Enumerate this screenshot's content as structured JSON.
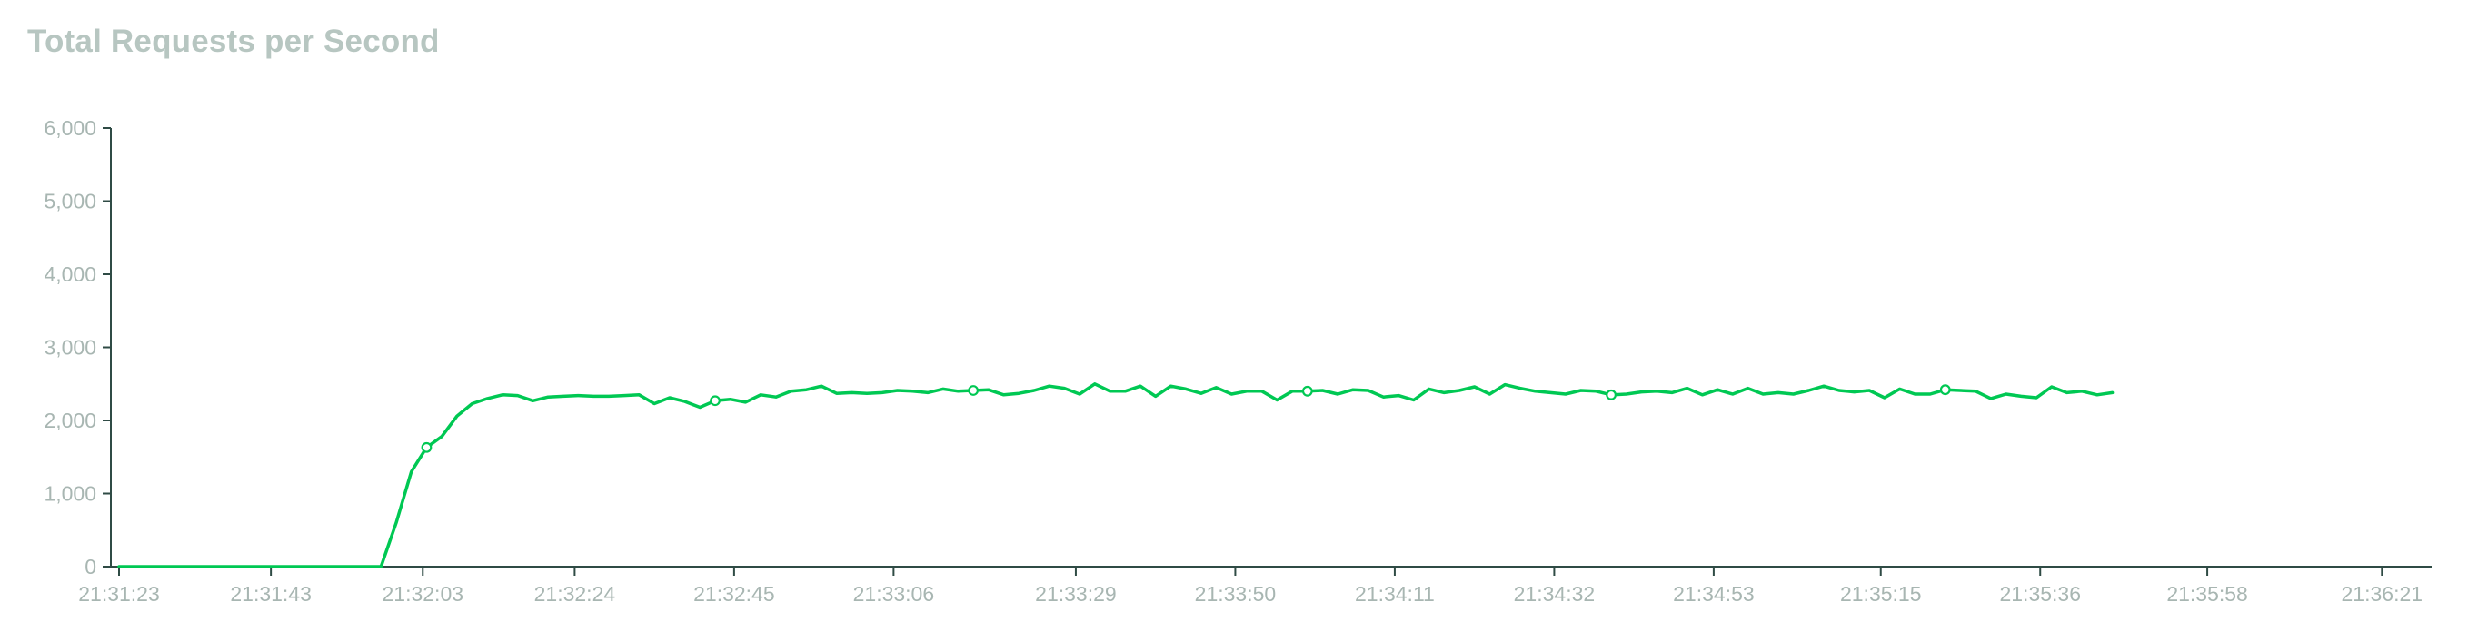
{
  "chart_data": {
    "type": "line",
    "title": "Total Requests per Second",
    "xlabel": "",
    "ylabel": "",
    "ylim": [
      0,
      6000
    ],
    "yticks": [
      0,
      1000,
      2000,
      3000,
      4000,
      5000,
      6000
    ],
    "ytick_labels": [
      "0",
      "1,000",
      "2,000",
      "3,000",
      "4,000",
      "5,000",
      "6,000"
    ],
    "x_range_seconds": [
      0,
      300
    ],
    "xtick_seconds": [
      0,
      20,
      40,
      60,
      81,
      102,
      126,
      147,
      168,
      189,
      210,
      232,
      253,
      275,
      298
    ],
    "xtick_labels": [
      "21:31:23",
      "21:31:43",
      "21:32:03",
      "21:32:24",
      "21:32:45",
      "21:33:06",
      "21:33:29",
      "21:33:50",
      "21:34:11",
      "21:34:32",
      "21:34:53",
      "21:35:15",
      "21:35:36",
      "21:35:58",
      "21:36:21"
    ],
    "grid": false,
    "series": [
      {
        "name": "Total Requests per Second",
        "color": "#00c853",
        "points": [
          [
            0,
            0
          ],
          [
            34.5,
            0
          ],
          [
            36.5,
            600
          ],
          [
            38.5,
            1300
          ],
          [
            40.5,
            1630
          ],
          [
            42.5,
            1780
          ],
          [
            44.5,
            2060
          ],
          [
            46.5,
            2230
          ],
          [
            48.5,
            2300
          ],
          [
            50.5,
            2350
          ],
          [
            52.5,
            2340
          ],
          [
            54.5,
            2270
          ],
          [
            56.5,
            2320
          ],
          [
            58.5,
            2330
          ],
          [
            60.5,
            2340
          ],
          [
            62.5,
            2330
          ],
          [
            64.5,
            2330
          ],
          [
            66.5,
            2340
          ],
          [
            68.5,
            2350
          ],
          [
            70.5,
            2230
          ],
          [
            72.5,
            2310
          ],
          [
            74.5,
            2260
          ],
          [
            76.5,
            2180
          ],
          [
            78.5,
            2270
          ],
          [
            80.5,
            2290
          ],
          [
            82.5,
            2250
          ],
          [
            84.5,
            2350
          ],
          [
            86.5,
            2320
          ],
          [
            88.5,
            2400
          ],
          [
            90.5,
            2420
          ],
          [
            92.5,
            2470
          ],
          [
            94.5,
            2370
          ],
          [
            96.5,
            2380
          ],
          [
            98.5,
            2370
          ],
          [
            100.5,
            2380
          ],
          [
            102.5,
            2410
          ],
          [
            104.5,
            2400
          ],
          [
            106.5,
            2380
          ],
          [
            108.5,
            2430
          ],
          [
            110.5,
            2400
          ],
          [
            112.5,
            2410
          ],
          [
            114.5,
            2420
          ],
          [
            116.5,
            2350
          ],
          [
            118.5,
            2370
          ],
          [
            120.5,
            2410
          ],
          [
            122.5,
            2470
          ],
          [
            124.5,
            2440
          ],
          [
            126.5,
            2360
          ],
          [
            128.5,
            2500
          ],
          [
            130.5,
            2400
          ],
          [
            132.5,
            2400
          ],
          [
            134.5,
            2470
          ],
          [
            136.5,
            2330
          ],
          [
            138.5,
            2470
          ],
          [
            140.5,
            2430
          ],
          [
            142.5,
            2370
          ],
          [
            144.5,
            2450
          ],
          [
            146.5,
            2360
          ],
          [
            148.5,
            2400
          ],
          [
            150.5,
            2400
          ],
          [
            152.5,
            2280
          ],
          [
            154.5,
            2400
          ],
          [
            156.5,
            2400
          ],
          [
            158.5,
            2410
          ],
          [
            160.5,
            2360
          ],
          [
            162.5,
            2420
          ],
          [
            164.5,
            2410
          ],
          [
            166.5,
            2320
          ],
          [
            168.5,
            2340
          ],
          [
            170.5,
            2280
          ],
          [
            172.5,
            2430
          ],
          [
            174.5,
            2380
          ],
          [
            176.5,
            2410
          ],
          [
            178.5,
            2460
          ],
          [
            180.5,
            2360
          ],
          [
            182.5,
            2490
          ],
          [
            184.5,
            2440
          ],
          [
            186.5,
            2400
          ],
          [
            188.5,
            2380
          ],
          [
            190.5,
            2360
          ],
          [
            192.5,
            2410
          ],
          [
            194.5,
            2400
          ],
          [
            196.5,
            2350
          ],
          [
            198.5,
            2360
          ],
          [
            200.5,
            2390
          ],
          [
            202.5,
            2400
          ],
          [
            204.5,
            2380
          ],
          [
            206.5,
            2440
          ],
          [
            208.5,
            2350
          ],
          [
            210.5,
            2420
          ],
          [
            212.5,
            2360
          ],
          [
            214.5,
            2440
          ],
          [
            216.5,
            2360
          ],
          [
            218.5,
            2380
          ],
          [
            220.5,
            2360
          ],
          [
            222.5,
            2410
          ],
          [
            224.5,
            2470
          ],
          [
            226.5,
            2410
          ],
          [
            228.5,
            2390
          ],
          [
            230.5,
            2410
          ],
          [
            232.5,
            2310
          ],
          [
            234.5,
            2430
          ],
          [
            236.5,
            2360
          ],
          [
            238.5,
            2360
          ],
          [
            240.5,
            2420
          ],
          [
            242.5,
            2410
          ],
          [
            244.5,
            2400
          ],
          [
            246.5,
            2300
          ],
          [
            248.5,
            2360
          ],
          [
            250.5,
            2330
          ],
          [
            252.5,
            2310
          ],
          [
            254.5,
            2460
          ],
          [
            256.5,
            2380
          ],
          [
            258.5,
            2400
          ],
          [
            260.5,
            2350
          ],
          [
            262.5,
            2380
          ]
        ],
        "marker_indices": [
          4,
          23,
          40,
          62,
          82,
          104,
          125,
          146,
          159,
          183,
          204,
          224,
          240,
          261
        ]
      }
    ]
  }
}
